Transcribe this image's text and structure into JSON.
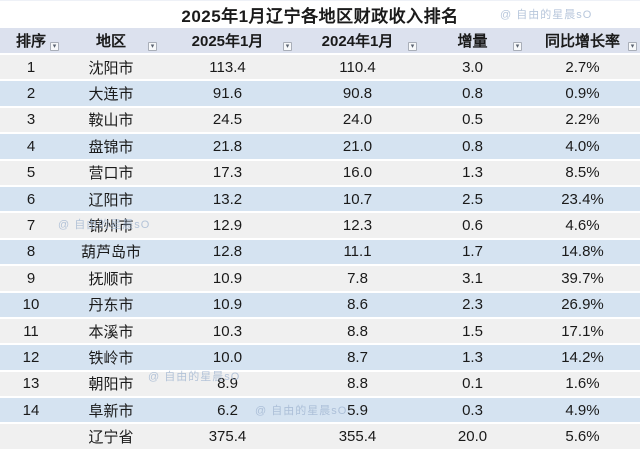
{
  "title": "2025年1月辽宁各地区财政收入排名",
  "watermark": {
    "text": "@ 自由的星晨sO"
  },
  "colors": {
    "header_bg": "#dce1ee",
    "row_gray": "#f0f0f0",
    "row_blue": "#d5e3f1",
    "text": "#1a1a1a",
    "watermark": "#9fb4d0"
  },
  "icons": {
    "filter_arrow": "▾"
  },
  "table": {
    "columns": [
      "排序",
      "地区",
      "2025年1月",
      "2024年1月",
      "增量",
      "同比增长率"
    ],
    "rows": [
      {
        "rank": "1",
        "region": "沈阳市",
        "v2025": "113.4",
        "v2024": "110.4",
        "delta": "3.0",
        "growth": "2.7%"
      },
      {
        "rank": "2",
        "region": "大连市",
        "v2025": "91.6",
        "v2024": "90.8",
        "delta": "0.8",
        "growth": "0.9%"
      },
      {
        "rank": "3",
        "region": "鞍山市",
        "v2025": "24.5",
        "v2024": "24.0",
        "delta": "0.5",
        "growth": "2.2%"
      },
      {
        "rank": "4",
        "region": "盘锦市",
        "v2025": "21.8",
        "v2024": "21.0",
        "delta": "0.8",
        "growth": "4.0%"
      },
      {
        "rank": "5",
        "region": "营口市",
        "v2025": "17.3",
        "v2024": "16.0",
        "delta": "1.3",
        "growth": "8.5%"
      },
      {
        "rank": "6",
        "region": "辽阳市",
        "v2025": "13.2",
        "v2024": "10.7",
        "delta": "2.5",
        "growth": "23.4%"
      },
      {
        "rank": "7",
        "region": "锦州市",
        "v2025": "12.9",
        "v2024": "12.3",
        "delta": "0.6",
        "growth": "4.6%"
      },
      {
        "rank": "8",
        "region": "葫芦岛市",
        "v2025": "12.8",
        "v2024": "11.1",
        "delta": "1.7",
        "growth": "14.8%"
      },
      {
        "rank": "9",
        "region": "抚顺市",
        "v2025": "10.9",
        "v2024": "7.8",
        "delta": "3.1",
        "growth": "39.7%"
      },
      {
        "rank": "10",
        "region": "丹东市",
        "v2025": "10.9",
        "v2024": "8.6",
        "delta": "2.3",
        "growth": "26.9%"
      },
      {
        "rank": "11",
        "region": "本溪市",
        "v2025": "10.3",
        "v2024": "8.8",
        "delta": "1.5",
        "growth": "17.1%"
      },
      {
        "rank": "12",
        "region": "铁岭市",
        "v2025": "10.0",
        "v2024": "8.7",
        "delta": "1.3",
        "growth": "14.2%"
      },
      {
        "rank": "13",
        "region": "朝阳市",
        "v2025": "8.9",
        "v2024": "8.8",
        "delta": "0.1",
        "growth": "1.6%"
      },
      {
        "rank": "14",
        "region": "阜新市",
        "v2025": "6.2",
        "v2024": "5.9",
        "delta": "0.3",
        "growth": "4.9%"
      },
      {
        "rank": "",
        "region": "辽宁省",
        "v2025": "375.4",
        "v2024": "355.4",
        "delta": "20.0",
        "growth": "5.6%"
      }
    ]
  },
  "chart_data": {
    "type": "table",
    "title": "2025年1月辽宁各地区财政收入排名",
    "columns": [
      "排序",
      "地区",
      "2025年1月",
      "2024年1月",
      "增量",
      "同比增长率"
    ],
    "rows": [
      [
        "1",
        "沈阳市",
        113.4,
        110.4,
        3.0,
        "2.7%"
      ],
      [
        "2",
        "大连市",
        91.6,
        90.8,
        0.8,
        "0.9%"
      ],
      [
        "3",
        "鞍山市",
        24.5,
        24.0,
        0.5,
        "2.2%"
      ],
      [
        "4",
        "盘锦市",
        21.8,
        21.0,
        0.8,
        "4.0%"
      ],
      [
        "5",
        "营口市",
        17.3,
        16.0,
        1.3,
        "8.5%"
      ],
      [
        "6",
        "辽阳市",
        13.2,
        10.7,
        2.5,
        "23.4%"
      ],
      [
        "7",
        "锦州市",
        12.9,
        12.3,
        0.6,
        "4.6%"
      ],
      [
        "8",
        "葫芦岛市",
        12.8,
        11.1,
        1.7,
        "14.8%"
      ],
      [
        "9",
        "抚顺市",
        10.9,
        7.8,
        3.1,
        "39.7%"
      ],
      [
        "10",
        "丹东市",
        10.9,
        8.6,
        2.3,
        "26.9%"
      ],
      [
        "11",
        "本溪市",
        10.3,
        8.8,
        1.5,
        "17.1%"
      ],
      [
        "12",
        "铁岭市",
        10.0,
        8.7,
        1.3,
        "14.2%"
      ],
      [
        "13",
        "朝阳市",
        8.9,
        8.8,
        0.1,
        "1.6%"
      ],
      [
        "14",
        "阜新市",
        6.2,
        5.9,
        0.3,
        "4.9%"
      ],
      [
        "",
        "辽宁省",
        375.4,
        355.4,
        20.0,
        "5.6%"
      ]
    ]
  }
}
